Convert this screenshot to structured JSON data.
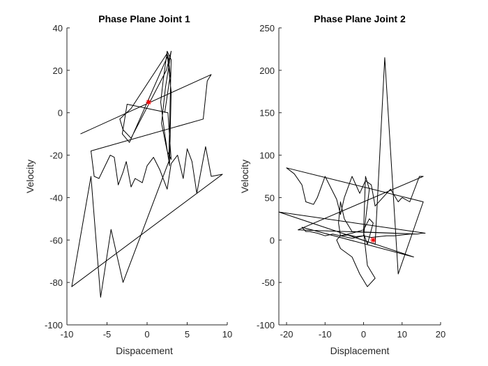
{
  "chart_data": [
    {
      "type": "line",
      "title": "Phase Plane Joint 1",
      "xlabel": "Dispacement",
      "ylabel": "Velocity",
      "xlim": [
        -10,
        10
      ],
      "ylim": [
        -100,
        40
      ],
      "xticks": [
        -10,
        -5,
        0,
        5,
        10
      ],
      "yticks": [
        -100,
        -80,
        -60,
        -40,
        -20,
        0,
        20,
        40
      ],
      "grid": false,
      "line_color": "#000000",
      "marker": {
        "x": 0.2,
        "y": 5,
        "symbol": "*",
        "color": "#ff0000"
      },
      "series": [
        {
          "x": [
            -8.3,
            8.0,
            7.5,
            7.0,
            -7.0,
            -6.6,
            -6.0,
            -4.6,
            -4.1,
            -3.6,
            -3.0,
            -2.6,
            -2.0,
            -1.5,
            -0.6,
            0.0,
            0.8,
            1.6,
            2.5,
            3.0,
            3.8,
            4.5,
            5.0,
            5.6,
            6.2,
            7.3,
            8.0,
            9.4,
            -9.4,
            -7.0,
            -5.8,
            -4.5,
            -3.0,
            -1.0,
            2.7,
            3.0,
            2.5,
            2.0,
            1.7,
            2.2,
            2.8,
            3.0,
            2.5,
            -2.0,
            -3.4,
            -3.0,
            -2.0,
            2.4,
            3.0,
            2.3,
            1.8,
            2.5,
            3.0,
            2.6,
            -2.5,
            -3.1,
            -2.2,
            2.6,
            2.9,
            2.2
          ],
          "y": [
            -10,
            18,
            15,
            -3,
            -18,
            -30,
            -31,
            -20,
            -21,
            -34,
            -28,
            -23,
            -35,
            -31,
            -33,
            -25,
            -21,
            -27,
            -36,
            -24,
            -20,
            -31,
            -17,
            -23,
            -38,
            -16,
            -30,
            -29,
            -82,
            -30,
            -87,
            -55,
            -80,
            -60,
            -23,
            25,
            29,
            15,
            5,
            -10,
            -25,
            10,
            28,
            2,
            -3,
            -8,
            -12,
            20,
            29,
            12,
            -5,
            -18,
            -22,
            0,
            4,
            -10,
            -14,
            27,
            18,
            0
          ]
        }
      ]
    },
    {
      "type": "line",
      "title": "Phase Plane Joint 2",
      "xlabel": "Displacement",
      "ylabel": "Velocity",
      "xlim": [
        -22,
        20
      ],
      "ylim": [
        -100,
        250
      ],
      "xticks": [
        -20,
        -10,
        0,
        10,
        20
      ],
      "yticks": [
        -100,
        -50,
        0,
        50,
        100,
        150,
        200,
        250
      ],
      "grid": false,
      "line_color": "#000000",
      "marker": {
        "x": 2.5,
        "y": 0,
        "symbol": "*",
        "color": "#ff0000"
      },
      "series": [
        {
          "x": [
            -22,
            13,
            -16,
            -15,
            -14,
            -12,
            -10,
            -8,
            -6,
            -4,
            -2,
            0,
            2,
            4,
            6,
            8,
            10,
            12,
            14,
            15,
            16,
            -22,
            3.0,
            5.5,
            9.0,
            15.5,
            -20.0,
            -18.0,
            -16.0,
            -15.0,
            -13.0,
            -12.0,
            -10.0,
            -7.0,
            -6.0,
            -5.0,
            -3.0,
            -1.0,
            0.5,
            2.0,
            3.0,
            5.0,
            7.0,
            9.0,
            10.0,
            12.0,
            14.5,
            15.5,
            -17,
            14,
            -3,
            -5,
            -6,
            -6.5,
            -6,
            -3,
            0,
            1.5,
            0.5,
            0,
            1,
            3,
            1,
            -1,
            -3,
            -6,
            -7,
            -6,
            -3,
            0,
            1.5,
            2.5,
            1.0,
            0.0
          ],
          "y": [
            33,
            -20,
            15,
            10,
            10,
            8,
            5,
            7,
            5,
            6,
            4,
            5,
            3,
            4,
            5,
            5,
            6,
            7,
            7,
            8,
            8,
            33,
            -5,
            215,
            -40,
            45,
            85,
            78,
            65,
            45,
            42,
            50,
            75,
            48,
            30,
            50,
            75,
            55,
            70,
            65,
            40,
            50,
            60,
            45,
            50,
            45,
            75,
            75,
            12,
            7,
            10,
            25,
            45,
            20,
            5,
            2,
            5,
            60,
            75,
            10,
            -30,
            -45,
            -55,
            -40,
            -20,
            -10,
            0,
            5,
            8,
            12,
            25,
            20,
            -5,
            8
          ]
        }
      ]
    }
  ]
}
